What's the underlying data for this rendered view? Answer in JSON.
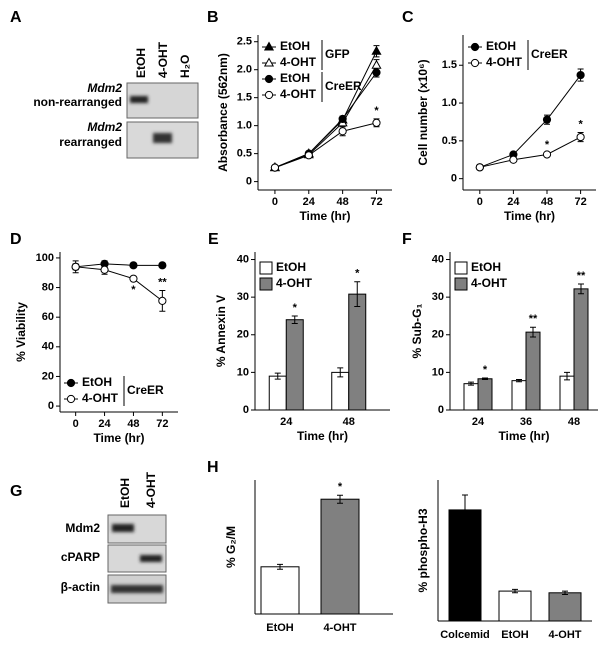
{
  "panel_a": {
    "panel": "A",
    "lanes": [
      "EtOH",
      "4-OHT",
      "H₂O"
    ],
    "rows": [
      {
        "gene": "Mdm2",
        "label": "non-rearranged"
      },
      {
        "gene": "Mdm2",
        "label": "rearranged"
      }
    ]
  },
  "panel_g": {
    "panel": "G",
    "lanes": [
      "EtOH",
      "4-OHT"
    ],
    "rows": [
      "Mdm2",
      "cPARP",
      "β-actin"
    ]
  },
  "chart_data": [
    {
      "type": "line",
      "panel": "B",
      "xlabel": "Time (hr)",
      "ylabel": "Absorbance (562nm)",
      "x": [
        0,
        24,
        48,
        72
      ],
      "xlim": [
        -12,
        83
      ],
      "xticks": [
        0,
        24,
        48,
        72
      ],
      "ylim": [
        -0.15,
        2.62
      ],
      "yticks": [
        0,
        0.5,
        {
          "value": 1,
          "label": "1.0"
        },
        1.5,
        {
          "value": 2,
          "label": "2.0"
        },
        2.5
      ],
      "series": [
        {
          "name": "EtOH",
          "group": "GFP",
          "color": "#000000",
          "marker": "triangle",
          "filled": true,
          "values": [
            0.25,
            0.5,
            1.1,
            2.33
          ],
          "errors": [
            0.02,
            0.03,
            0.05,
            0.1
          ]
        },
        {
          "name": "4-OHT",
          "group": "GFP",
          "color": "#000000",
          "marker": "triangle",
          "filled": false,
          "values": [
            0.25,
            0.48,
            1.05,
            2.08
          ],
          "errors": [
            0.02,
            0.03,
            0.05,
            0.1
          ]
        },
        {
          "name": "EtOH",
          "group": "CreER",
          "color": "#000000",
          "marker": "circle",
          "filled": true,
          "values": [
            0.25,
            0.5,
            1.12,
            1.95
          ],
          "errors": [
            0.02,
            0.03,
            0.05,
            0.08
          ]
        },
        {
          "name": "4-OHT",
          "group": "CreER",
          "color": "#000000",
          "marker": "circle",
          "filled": false,
          "values": [
            0.25,
            0.47,
            0.9,
            1.05
          ],
          "errors": [
            0.02,
            0.03,
            0.08,
            0.07
          ]
        }
      ],
      "annotations": [
        {
          "text": "*",
          "series": 3,
          "point": 3
        }
      ]
    },
    {
      "type": "line",
      "panel": "C",
      "xlabel": "Time (hr)",
      "ylabel": "Cell number (x10⁶)",
      "x": [
        0,
        24,
        48,
        72
      ],
      "xlim": [
        -12,
        83
      ],
      "xticks": [
        0,
        24,
        48,
        72
      ],
      "ylim": [
        -0.15,
        1.9
      ],
      "yticks": [
        0,
        0.5,
        {
          "value": 1,
          "label": "1.0"
        },
        1.5
      ],
      "series": [
        {
          "name": "EtOH",
          "group": "CreER",
          "color": "#000000",
          "marker": "circle",
          "filled": true,
          "values": [
            0.15,
            0.32,
            0.78,
            1.37
          ],
          "errors": [
            0.01,
            0.03,
            0.06,
            0.08
          ]
        },
        {
          "name": "4-OHT",
          "group": "CreER",
          "color": "#000000",
          "marker": "circle",
          "filled": false,
          "values": [
            0.15,
            0.25,
            0.32,
            0.55
          ],
          "errors": [
            0.01,
            0.02,
            0.02,
            0.06
          ]
        }
      ],
      "annotations": [
        {
          "text": "*",
          "series": 1,
          "point": 2
        },
        {
          "text": "*",
          "series": 1,
          "point": 3
        }
      ]
    },
    {
      "type": "line",
      "panel": "D",
      "xlabel": "Time (hr)",
      "ylabel": "% Viability",
      "x": [
        0,
        24,
        48,
        72
      ],
      "xlim": [
        -13,
        85
      ],
      "xticks": [
        0,
        24,
        48,
        72
      ],
      "ylim": [
        -4,
        104
      ],
      "yticks": [
        0,
        20,
        40,
        60,
        80,
        100
      ],
      "series": [
        {
          "name": "EtOH",
          "group": "CreER",
          "color": "#000000",
          "marker": "circle",
          "filled": true,
          "values": [
            94,
            96,
            95,
            95
          ],
          "errors": [
            2,
            2,
            1,
            1
          ]
        },
        {
          "name": "4-OHT",
          "group": "CreER",
          "color": "#000000",
          "marker": "circle",
          "filled": false,
          "values": [
            94,
            92,
            86,
            71
          ],
          "errors": [
            4,
            3,
            1,
            7
          ]
        }
      ],
      "annotations": [
        {
          "text": "*",
          "series": 1,
          "point": 2
        },
        {
          "text": "**",
          "series": 1,
          "point": 3
        }
      ]
    },
    {
      "type": "bar",
      "panel": "E",
      "xlabel": "Time (hr)",
      "ylabel": "% Annexin V",
      "categories": [
        "24",
        "48"
      ],
      "ylim": [
        0,
        42
      ],
      "yticks": [
        0,
        10,
        20,
        30,
        40
      ],
      "series": [
        {
          "name": "EtOH",
          "color": "#ffffff",
          "values": [
            9,
            10
          ],
          "errors": [
            0.8,
            1.2
          ]
        },
        {
          "name": "4-OHT",
          "color": "#808080",
          "values": [
            24,
            30.8
          ],
          "errors": [
            1,
            3.3
          ]
        }
      ],
      "annotations": [
        {
          "text": "*",
          "series": 1,
          "point": 0
        },
        {
          "text": "*",
          "series": 1,
          "point": 1
        }
      ]
    },
    {
      "type": "bar",
      "panel": "F",
      "xlabel": "Time (hr)",
      "ylabel": "% Sub-G₁",
      "categories": [
        "24",
        "36",
        "48"
      ],
      "ylim": [
        0,
        42
      ],
      "yticks": [
        0,
        10,
        20,
        30,
        40
      ],
      "series": [
        {
          "name": "EtOH",
          "color": "#ffffff",
          "values": [
            7,
            7.8,
            9
          ],
          "errors": [
            0.4,
            0.3,
            1
          ]
        },
        {
          "name": "4-OHT",
          "color": "#808080",
          "values": [
            8.3,
            20.7,
            32.2
          ],
          "errors": [
            0.2,
            1.3,
            1.3
          ]
        }
      ],
      "annotations": [
        {
          "text": "*",
          "series": 1,
          "point": 0
        },
        {
          "text": "**",
          "series": 1,
          "point": 1
        },
        {
          "text": "**",
          "series": 1,
          "point": 2
        }
      ]
    },
    {
      "type": "bar",
      "panel": "H",
      "ylabel": "% G₂/M",
      "categories": [
        "EtOH",
        "4-OHT"
      ],
      "values": [
        11.8,
        28.7
      ],
      "errors": [
        0.6,
        1.0
      ],
      "colors": [
        "#ffffff",
        "#808080"
      ],
      "ylim": [
        0,
        33.5
      ],
      "annotations": [
        {
          "text": "*",
          "point": 1
        }
      ]
    },
    {
      "type": "bar",
      "ylabel": "% phospho-H3",
      "categories": [
        "Colcemid",
        "EtOH",
        "4-OHT"
      ],
      "values": [
        26,
        7,
        6.6
      ],
      "errors": [
        3.5,
        0.4,
        0.4
      ],
      "colors": [
        "#000000",
        "#ffffff",
        "#808080"
      ],
      "ylim": [
        0,
        33
      ]
    }
  ]
}
